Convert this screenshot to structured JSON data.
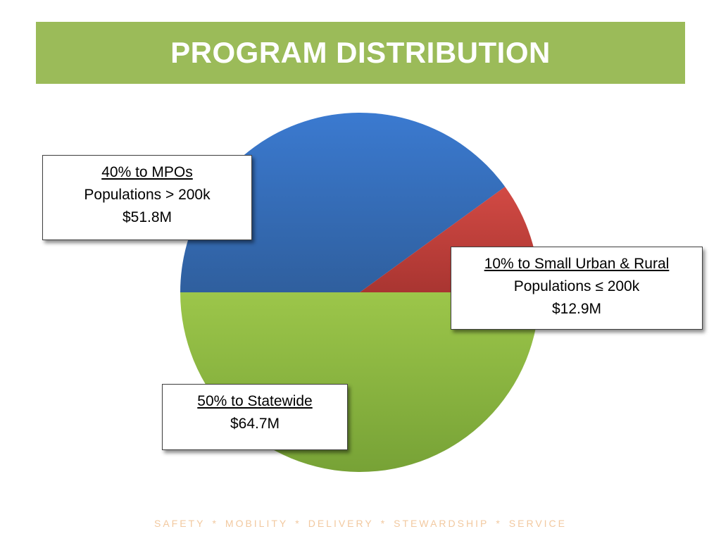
{
  "slide": {
    "title": "PROGRAM DISTRIBUTION",
    "footer_items": [
      "SAFETY",
      "MOBILITY",
      "DELIVERY",
      "STEWARDSHIP",
      "SERVICE"
    ],
    "footer_separator": "*"
  },
  "callouts": {
    "mpo": {
      "head": "40% to MPOs",
      "line1": "Populations > 200k",
      "line2": "$51.8M"
    },
    "small": {
      "head": "10% to Small Urban & Rural",
      "line1": "Populations ≤ 200k",
      "line2": "$12.9M"
    },
    "state": {
      "head": "50% to Statewide",
      "line1": "$64.7M"
    }
  },
  "colors": {
    "title_bar": "#9bbb59",
    "mpo": "#4f81bd",
    "small": "#c0504d",
    "state": "#9bbb59",
    "footer_text": "#f2c9a0"
  },
  "chart_data": {
    "type": "pie",
    "slices": [
      {
        "label": "MPOs",
        "percent": 40,
        "amount": "$51.8M"
      },
      {
        "label": "Small Urban & Rural",
        "percent": 10,
        "amount": "$12.9M"
      },
      {
        "label": "Statewide",
        "percent": 50,
        "amount": "$64.7M"
      }
    ],
    "title": "",
    "legend": "none"
  }
}
